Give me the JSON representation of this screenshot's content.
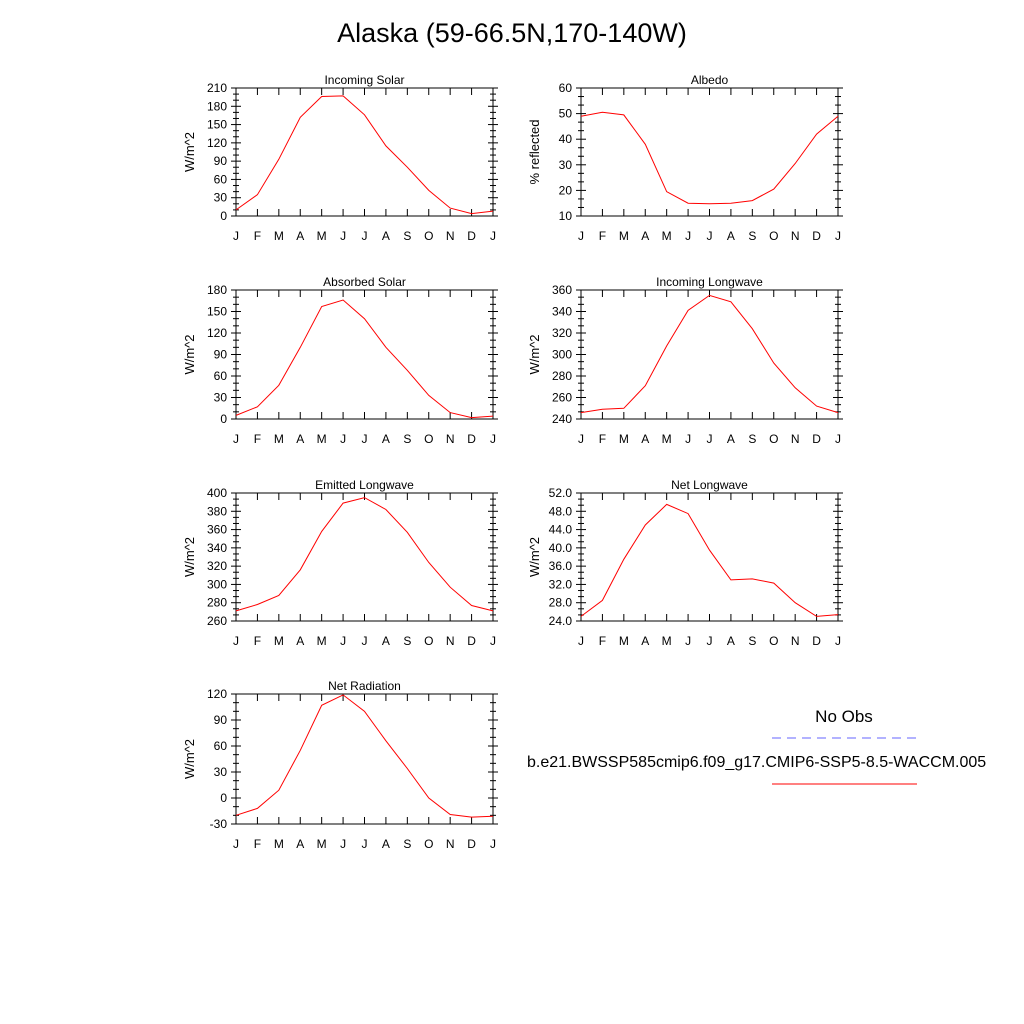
{
  "title": "Alaska (59-66.5N,170-140W)",
  "legend": {
    "obs_label": "No Obs",
    "model_label": "b.e21.BWSSP585cmip6.f09_g17.CMIP6-SSP5-8.5-WACCM.005",
    "obs_color": "#6666ff",
    "model_color": "#ff0000"
  },
  "chart_data": [
    {
      "type": "line",
      "title": "Incoming Solar",
      "ylabel": "W/m^2",
      "categories": [
        "J",
        "F",
        "M",
        "A",
        "M",
        "J",
        "J",
        "A",
        "S",
        "O",
        "N",
        "D",
        "J"
      ],
      "ylim": [
        0,
        210
      ],
      "yticks": [
        "0",
        "30",
        "60",
        "90",
        "120",
        "150",
        "180",
        "210"
      ],
      "values": [
        10,
        35,
        93,
        162,
        196,
        197,
        166,
        115,
        80,
        42,
        13,
        4,
        8
      ]
    },
    {
      "type": "line",
      "title": "Albedo",
      "ylabel": "% reflected",
      "categories": [
        "J",
        "F",
        "M",
        "A",
        "M",
        "J",
        "J",
        "A",
        "S",
        "O",
        "N",
        "D",
        "J"
      ],
      "ylim": [
        10,
        60
      ],
      "yticks": [
        "10",
        "20",
        "30",
        "40",
        "50",
        "60"
      ],
      "values": [
        49.0,
        50.5,
        49.5,
        38.0,
        19.5,
        15.0,
        14.8,
        15.0,
        16.0,
        20.5,
        30.5,
        42.0,
        49.0
      ]
    },
    {
      "type": "line",
      "title": "Absorbed Solar",
      "ylabel": "W/m^2",
      "categories": [
        "J",
        "F",
        "M",
        "A",
        "M",
        "J",
        "J",
        "A",
        "S",
        "O",
        "N",
        "D",
        "J"
      ],
      "ylim": [
        0,
        180
      ],
      "yticks": [
        "0",
        "30",
        "60",
        "90",
        "120",
        "150",
        "180"
      ],
      "values": [
        5,
        17,
        47,
        100,
        157,
        166,
        140,
        100,
        68,
        33,
        9,
        2,
        4
      ]
    },
    {
      "type": "line",
      "title": "Incoming Longwave",
      "ylabel": "W/m^2",
      "categories": [
        "J",
        "F",
        "M",
        "A",
        "M",
        "J",
        "J",
        "A",
        "S",
        "O",
        "N",
        "D",
        "J"
      ],
      "ylim": [
        240,
        360
      ],
      "yticks": [
        "240",
        "260",
        "280",
        "300",
        "320",
        "340",
        "360"
      ],
      "values": [
        246,
        249,
        250,
        271,
        308,
        341,
        355,
        349,
        324,
        292,
        269,
        252,
        246
      ]
    },
    {
      "type": "line",
      "title": "Emitted Longwave",
      "ylabel": "W/m^2",
      "categories": [
        "J",
        "F",
        "M",
        "A",
        "M",
        "J",
        "J",
        "A",
        "S",
        "O",
        "N",
        "D",
        "J"
      ],
      "ylim": [
        260,
        400
      ],
      "yticks": [
        "260",
        "280",
        "300",
        "320",
        "340",
        "360",
        "380",
        "400"
      ],
      "values": [
        271,
        278,
        288,
        316,
        358,
        389,
        395,
        382,
        357,
        324,
        297,
        277,
        271
      ]
    },
    {
      "type": "line",
      "title": "Net Longwave",
      "ylabel": "W/m^2",
      "categories": [
        "J",
        "F",
        "M",
        "A",
        "M",
        "J",
        "J",
        "A",
        "S",
        "O",
        "N",
        "D",
        "J"
      ],
      "ylim": [
        24,
        52
      ],
      "yticks": [
        "24.0",
        "28.0",
        "32.0",
        "36.0",
        "40.0",
        "44.0",
        "48.0",
        "52.0"
      ],
      "values": [
        25.0,
        28.5,
        37.5,
        45.0,
        49.5,
        47.5,
        39.5,
        33.0,
        33.2,
        32.3,
        28.0,
        25.0,
        25.4
      ]
    },
    {
      "type": "line",
      "title": "Net Radiation",
      "ylabel": "W/m^2",
      "categories": [
        "J",
        "F",
        "M",
        "A",
        "M",
        "J",
        "J",
        "A",
        "S",
        "O",
        "N",
        "D",
        "J"
      ],
      "ylim": [
        -30,
        120
      ],
      "yticks": [
        "-30",
        "0",
        "30",
        "60",
        "90",
        "120"
      ],
      "values": [
        -20,
        -12,
        9,
        55,
        107,
        119,
        100,
        66,
        34,
        0,
        -19,
        -22,
        -21
      ]
    }
  ]
}
